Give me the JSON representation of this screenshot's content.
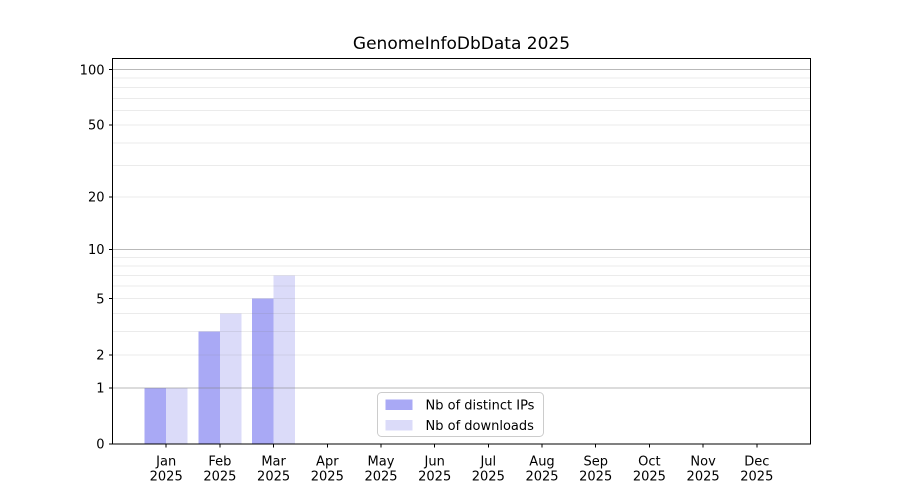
{
  "chart_data": {
    "type": "bar",
    "title": "GenomeInfoDbData 2025",
    "categories": [
      "Jan",
      "Feb",
      "Mar",
      "Apr",
      "May",
      "Jun",
      "Jul",
      "Aug",
      "Sep",
      "Oct",
      "Nov",
      "Dec"
    ],
    "year_label": "2025",
    "series": [
      {
        "name": "Nb of distinct IPs",
        "color": "#a9a9f5",
        "values": [
          1,
          3,
          5,
          0,
          0,
          0,
          0,
          0,
          0,
          0,
          0,
          0
        ]
      },
      {
        "name": "Nb of downloads",
        "color": "#dbdbf9",
        "values": [
          1,
          4,
          7,
          0,
          0,
          0,
          0,
          0,
          0,
          0,
          0,
          0
        ]
      }
    ],
    "xlabel": "",
    "ylabel": "",
    "yscale": "log1p",
    "ylim": [
      0,
      115
    ],
    "xlim": [
      -1,
      12
    ],
    "y_ticks": [
      0,
      1,
      2,
      5,
      10,
      20,
      50,
      100
    ],
    "grid_major": [
      1,
      10,
      100
    ],
    "grid_minor": [
      2,
      3,
      4,
      5,
      6,
      7,
      8,
      9,
      20,
      30,
      40,
      50,
      60,
      70,
      80,
      90
    ],
    "legend_position": "lower center",
    "colors": {
      "axis": "#000000",
      "text": "#000000",
      "grid": "#808080",
      "background": "#ffffff",
      "legend_border": "#cccccc",
      "legend_background": "#ffffff"
    }
  }
}
